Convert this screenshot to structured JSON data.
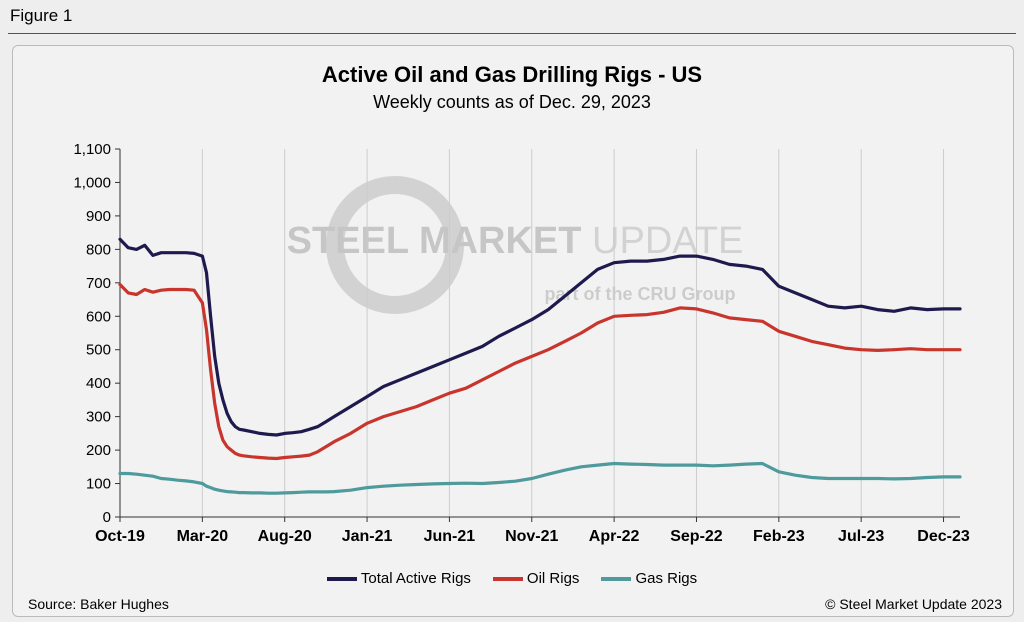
{
  "figure_label": "Figure 1",
  "source": "Source: Baker Hughes",
  "copyright": "© Steel Market Update 2023",
  "watermark": {
    "main1": "STEEL MARKET",
    "main2": "UPDATE",
    "sub1": "part of the",
    "sub2": "CRU",
    "sub3": "Group"
  },
  "colors": {
    "total": "#1f1a4d",
    "oil": "#c8352c",
    "gas": "#4f9a9c",
    "grid": "#cccccc"
  },
  "chart_data": {
    "type": "line",
    "title": "Active Oil and Gas Drilling Rigs - US",
    "subtitle": "Weekly counts as of Dec. 29, 2023",
    "xlabel": "",
    "ylabel": "",
    "ylim": [
      0,
      1100
    ],
    "yticks": [
      0,
      100,
      200,
      300,
      400,
      500,
      600,
      700,
      800,
      900,
      1000,
      1100
    ],
    "ytick_labels": [
      "0",
      "100",
      "200",
      "300",
      "400",
      "500",
      "600",
      "700",
      "800",
      "900",
      "1,000",
      "1,100"
    ],
    "xlim": [
      0,
      51
    ],
    "xticks": [
      0,
      5,
      10,
      15,
      20,
      25,
      30,
      35,
      40,
      45,
      50
    ],
    "xtick_labels": [
      "Oct-19",
      "Mar-20",
      "Aug-20",
      "Jan-21",
      "Jun-21",
      "Nov-21",
      "Apr-22",
      "Sep-22",
      "Feb-23",
      "Jul-23",
      "Dec-23"
    ],
    "grid": "vertical",
    "legend_position": "bottom",
    "x": [
      0,
      0.5,
      1,
      1.5,
      2,
      2.5,
      3,
      3.5,
      4,
      4.5,
      5,
      5.25,
      5.5,
      5.75,
      6,
      6.25,
      6.5,
      6.75,
      7,
      7.25,
      7.5,
      8,
      8.5,
      9,
      9.5,
      10,
      10.5,
      11,
      11.5,
      12,
      12.5,
      13,
      14,
      15,
      16,
      17,
      18,
      19,
      20,
      21,
      22,
      23,
      24,
      25,
      26,
      27,
      28,
      29,
      30,
      31,
      32,
      33,
      34,
      35,
      36,
      37,
      38,
      39,
      40,
      41,
      42,
      43,
      44,
      45,
      46,
      47,
      48,
      49,
      50,
      51
    ],
    "series": [
      {
        "name": "Total Active Rigs",
        "color": "#1f1a4d",
        "values": [
          830,
          805,
          800,
          812,
          782,
          790,
          790,
          790,
          790,
          788,
          780,
          730,
          600,
          480,
          400,
          350,
          310,
          285,
          270,
          262,
          260,
          255,
          250,
          247,
          245,
          250,
          252,
          255,
          262,
          270,
          285,
          300,
          330,
          360,
          390,
          410,
          430,
          450,
          470,
          490,
          510,
          540,
          565,
          590,
          620,
          660,
          700,
          740,
          760,
          765,
          765,
          770,
          780,
          780,
          770,
          755,
          750,
          740,
          690,
          670,
          650,
          630,
          625,
          630,
          620,
          615,
          625,
          620,
          622,
          622
        ]
      },
      {
        "name": "Oil Rigs",
        "color": "#c8352c",
        "values": [
          695,
          670,
          665,
          680,
          672,
          678,
          680,
          680,
          680,
          678,
          640,
          560,
          440,
          340,
          270,
          230,
          210,
          200,
          190,
          185,
          183,
          180,
          178,
          176,
          175,
          178,
          180,
          182,
          185,
          195,
          210,
          225,
          250,
          280,
          300,
          315,
          330,
          350,
          370,
          385,
          410,
          435,
          460,
          480,
          500,
          525,
          550,
          580,
          600,
          603,
          605,
          612,
          625,
          622,
          610,
          595,
          590,
          585,
          555,
          540,
          525,
          515,
          505,
          500,
          498,
          500,
          503,
          500,
          500,
          500
        ]
      },
      {
        "name": "Gas Rigs",
        "color": "#4f9a9c",
        "values": [
          130,
          130,
          128,
          125,
          122,
          115,
          113,
          110,
          108,
          105,
          100,
          92,
          88,
          83,
          80,
          78,
          76,
          75,
          74,
          73,
          73,
          72,
          72,
          71,
          71,
          72,
          73,
          74,
          75,
          75,
          75,
          76,
          80,
          88,
          92,
          95,
          97,
          99,
          100,
          101,
          100,
          103,
          107,
          115,
          128,
          140,
          150,
          155,
          160,
          158,
          157,
          155,
          155,
          155,
          153,
          155,
          158,
          160,
          135,
          125,
          118,
          115,
          115,
          115,
          115,
          114,
          115,
          118,
          120,
          120
        ]
      }
    ]
  }
}
